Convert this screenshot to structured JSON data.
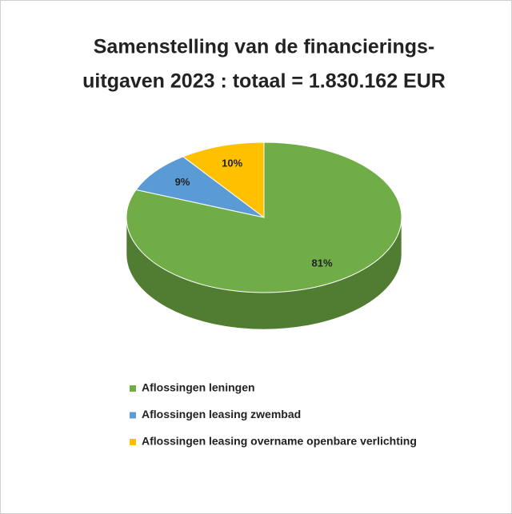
{
  "chart_data": {
    "type": "pie",
    "title": [
      "Samenstelling van de financierings-",
      "uitgaven 2023 : totaal = 1.830.162 EUR"
    ],
    "categories": [
      "Aflossingen leningen",
      "Aflossingen leasing zwembad",
      "Aflossingen leasing overname openbare verlichting"
    ],
    "values": [
      81,
      9,
      10
    ],
    "value_labels": [
      "81%",
      "9%",
      "10%"
    ],
    "colors": [
      "#70ad47",
      "#5b9bd5",
      "#ffc000"
    ],
    "legend": "bottom"
  }
}
